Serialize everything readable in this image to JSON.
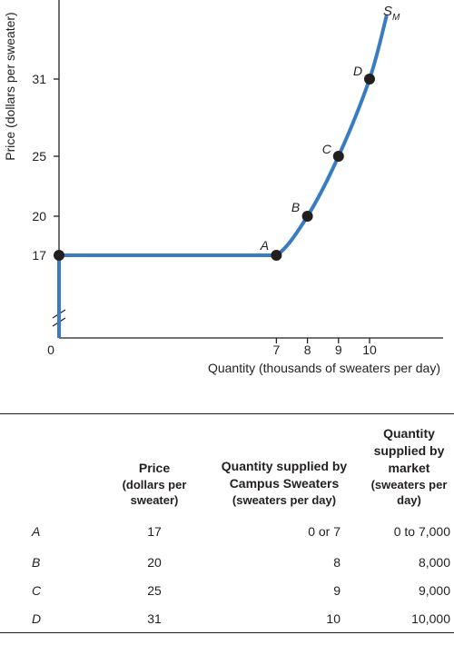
{
  "chart_data": {
    "type": "line",
    "title": "",
    "ylabel": "Price (dollars per sweater)",
    "xlabel": "Quantity (thousands of sweaters per day)",
    "x_ticks": [
      0,
      7,
      8,
      9,
      10
    ],
    "x_tick_labels": [
      "0",
      "7",
      "8",
      "9",
      "10"
    ],
    "y_ticks": [
      17,
      20,
      25,
      31
    ],
    "y_tick_labels": [
      "17",
      "20",
      "25",
      31
    ],
    "axis_break": "y",
    "xlim": [
      0,
      12.5
    ],
    "ylim": [
      14,
      37
    ],
    "series": [
      {
        "name": "S_M",
        "points": [
          {
            "x": 0,
            "y": 14
          },
          {
            "x": 0,
            "y": 17
          },
          {
            "x": 7,
            "y": 17
          },
          {
            "x": 8,
            "y": 20
          },
          {
            "x": 9,
            "y": 25
          },
          {
            "x": 10,
            "y": 31
          },
          {
            "x": 10.55,
            "y": 36
          }
        ]
      }
    ],
    "curve_label": {
      "main": "S",
      "sub": "M"
    },
    "marked_points": [
      {
        "label": "",
        "x": 0,
        "y": 17
      },
      {
        "label": "A",
        "x": 7,
        "y": 17
      },
      {
        "label": "B",
        "x": 8,
        "y": 20
      },
      {
        "label": "C",
        "x": 9,
        "y": 25
      },
      {
        "label": "D",
        "x": 10,
        "y": 31
      }
    ],
    "colors": {
      "curve": "#3a7cc4",
      "points": "#231f20"
    }
  },
  "table": {
    "headers": [
      {
        "main": "",
        "sub": ""
      },
      {
        "main": "Price",
        "sub": "(dollars per sweater)"
      },
      {
        "main": "Quantity supplied by Campus Sweaters",
        "sub": "(sweaters per day)"
      },
      {
        "main": "Quantity supplied by market",
        "sub": "(sweaters per day)"
      }
    ],
    "rows": [
      [
        "A",
        "17",
        "0 or 7",
        "0 to 7,000"
      ],
      [
        "B",
        "20",
        "8",
        "8,000"
      ],
      [
        "C",
        "25",
        "9",
        "9,000"
      ],
      [
        "D",
        "31",
        "10",
        "10,000"
      ]
    ]
  }
}
